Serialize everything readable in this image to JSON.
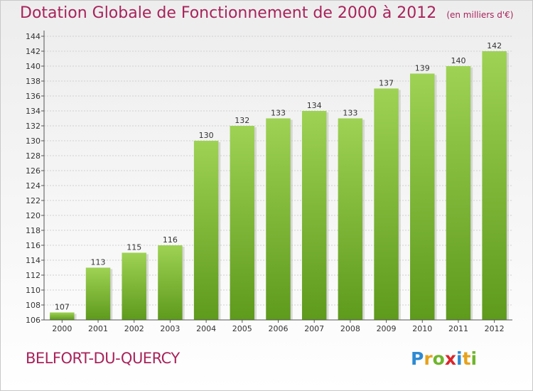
{
  "title": {
    "main": "Dotation Globale de Fonctionnement de 2000 à 2012",
    "unit": "(en milliers d'€)"
  },
  "commune": "BELFORT-DU-QUERCY",
  "logo": {
    "text": "Proxiti",
    "letters": [
      {
        "ch": "P",
        "color": "#2e8ad3"
      },
      {
        "ch": "r",
        "color": "#e7a21b"
      },
      {
        "ch": "o",
        "color": "#6fb52c"
      },
      {
        "ch": "x",
        "color": "#d9262b"
      },
      {
        "ch": "i",
        "color": "#2e8ad3"
      },
      {
        "ch": "t",
        "color": "#e7a21b"
      },
      {
        "ch": "i",
        "color": "#6fb52c"
      }
    ]
  },
  "colors": {
    "title": "#a8235b",
    "bar_top": "#9ed254",
    "bar_bottom": "#5e9a1c",
    "axis": "#555555",
    "grid": "#d0d0d0"
  },
  "chart_data": {
    "type": "bar",
    "categories": [
      "2000",
      "2001",
      "2002",
      "2003",
      "2004",
      "2005",
      "2006",
      "2007",
      "2008",
      "2009",
      "2010",
      "2011",
      "2012"
    ],
    "values": [
      107,
      113,
      115,
      116,
      130,
      132,
      133,
      134,
      133,
      137,
      139,
      140,
      142
    ],
    "ylim": [
      106,
      144
    ],
    "yticks": [
      106,
      108,
      110,
      112,
      114,
      116,
      118,
      120,
      122,
      124,
      126,
      128,
      130,
      132,
      134,
      136,
      138,
      140,
      142,
      144
    ],
    "grid": true,
    "xlabel": "",
    "ylabel": ""
  }
}
